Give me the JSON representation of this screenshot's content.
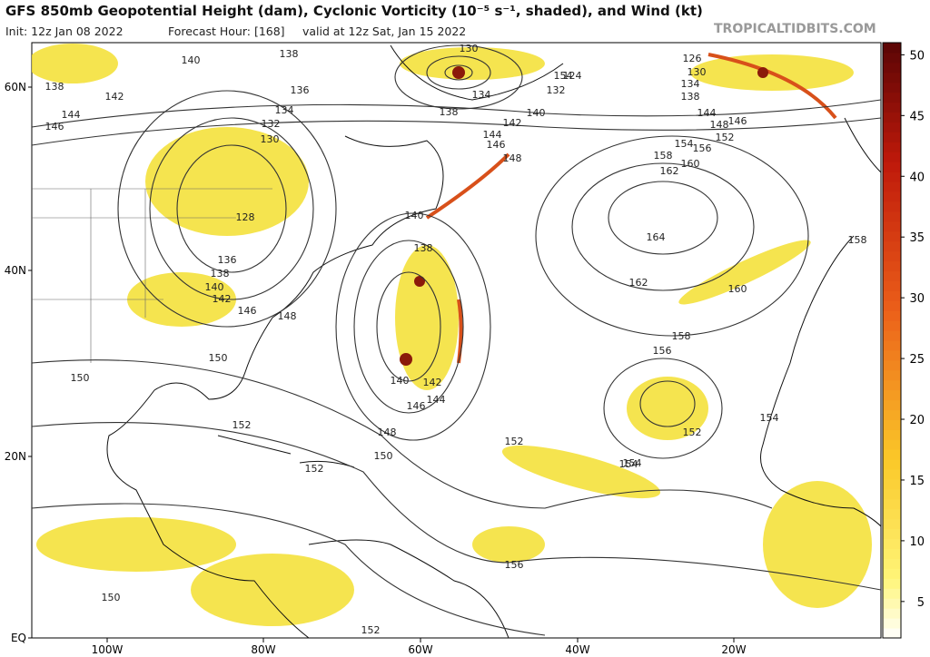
{
  "header": {
    "title": "GFS 850mb Geopotential Height (dam), Cyclonic Vorticity (10⁻⁵ s⁻¹, shaded), and Wind (kt)",
    "init": "Init: 12z Jan 08 2022",
    "forecast_hour": "Forecast Hour: [168]",
    "valid": "valid at 12z Sat, Jan 15 2022",
    "site": "TROPICALTIDBITS.COM"
  },
  "map": {
    "lat_labels": [
      "60N",
      "40N",
      "20N",
      "EQ"
    ],
    "lon_labels": [
      "100W",
      "80W",
      "60W",
      "40W",
      "20W"
    ],
    "contour_labels": [
      "140",
      "138",
      "138",
      "142",
      "144",
      "146",
      "136",
      "134",
      "132",
      "130",
      "128",
      "136",
      "138",
      "140",
      "142",
      "146",
      "148",
      "150",
      "150",
      "152",
      "152",
      "130",
      "134",
      "132",
      "124",
      "138",
      "140",
      "142",
      "144",
      "146",
      "148",
      "140",
      "138",
      "140",
      "142",
      "144",
      "146",
      "148",
      "150",
      "152",
      "154",
      "156",
      "154",
      "126",
      "130",
      "134",
      "138",
      "144",
      "146",
      "148",
      "152",
      "154",
      "156",
      "158",
      "160",
      "162",
      "164",
      "162",
      "160",
      "158",
      "158",
      "156",
      "152",
      "154",
      "154",
      "150",
      "152"
    ]
  },
  "colorbar": {
    "range": [
      2,
      51
    ],
    "ticks": [
      5,
      10,
      15,
      20,
      25,
      30,
      35,
      40,
      45,
      50
    ]
  }
}
